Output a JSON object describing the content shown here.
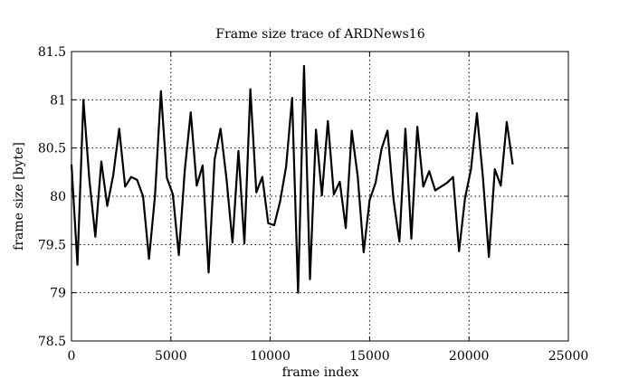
{
  "chart_data": {
    "type": "line",
    "title": "Frame size trace of ARDNews16",
    "xlabel": "frame index",
    "ylabel": "frame size [byte]",
    "xlim": [
      0,
      25000
    ],
    "ylim": [
      78.5,
      81.5
    ],
    "xticks": [
      0,
      5000,
      10000,
      15000,
      20000,
      25000
    ],
    "xtick_labels": [
      "0",
      "5000",
      "10000",
      "15000",
      "20000",
      "25000"
    ],
    "yticks": [
      78.5,
      79,
      79.5,
      80,
      80.5,
      81,
      81.5
    ],
    "ytick_labels": [
      "78.5",
      "79",
      "79.5",
      "80",
      "80.5",
      "81",
      "81.5"
    ],
    "grid": true,
    "grid_style": "dotted",
    "line_color": "#000000",
    "series": [
      {
        "x": [
          0,
          300,
          600,
          900,
          1200,
          1500,
          1800,
          2100,
          2400,
          2700,
          3000,
          3300,
          3600,
          3900,
          4200,
          4500,
          4800,
          5100,
          5400,
          5700,
          6000,
          6300,
          6600,
          6900,
          7200,
          7500,
          7800,
          8100,
          8400,
          8700,
          9000,
          9300,
          9600,
          9900,
          10200,
          10500,
          10800,
          11100,
          11400,
          11700,
          12000,
          12300,
          12600,
          12900,
          13200,
          13500,
          13800,
          14100,
          14400,
          14700,
          15000,
          15300,
          15600,
          15900,
          16200,
          16500,
          16800,
          17100,
          17400,
          17700,
          18000,
          18300,
          18600,
          18900,
          19200,
          19500,
          19800,
          20100,
          20400,
          20700,
          21000,
          21300,
          21600,
          21900,
          22200
        ],
        "y": [
          80.33,
          79.29,
          81.0,
          80.17,
          79.58,
          80.36,
          79.9,
          80.22,
          80.7,
          80.1,
          80.2,
          80.17,
          80.0,
          79.35,
          80.0,
          81.09,
          80.19,
          80.02,
          79.39,
          80.27,
          80.87,
          80.11,
          80.32,
          79.21,
          80.38,
          80.7,
          80.18,
          79.52,
          80.47,
          79.51,
          81.11,
          80.04,
          80.2,
          79.72,
          79.7,
          79.95,
          80.31,
          81.02,
          79.0,
          81.35,
          79.14,
          80.69,
          80.01,
          80.78,
          80.02,
          80.15,
          79.67,
          80.68,
          80.21,
          79.42,
          79.96,
          80.14,
          80.49,
          80.68,
          79.97,
          79.53,
          80.7,
          79.56,
          80.72,
          80.1,
          80.26,
          80.06,
          80.1,
          80.14,
          80.2,
          79.43,
          79.98,
          80.28,
          80.86,
          80.2,
          79.37,
          80.28,
          80.11,
          80.77,
          80.33
        ]
      }
    ]
  }
}
